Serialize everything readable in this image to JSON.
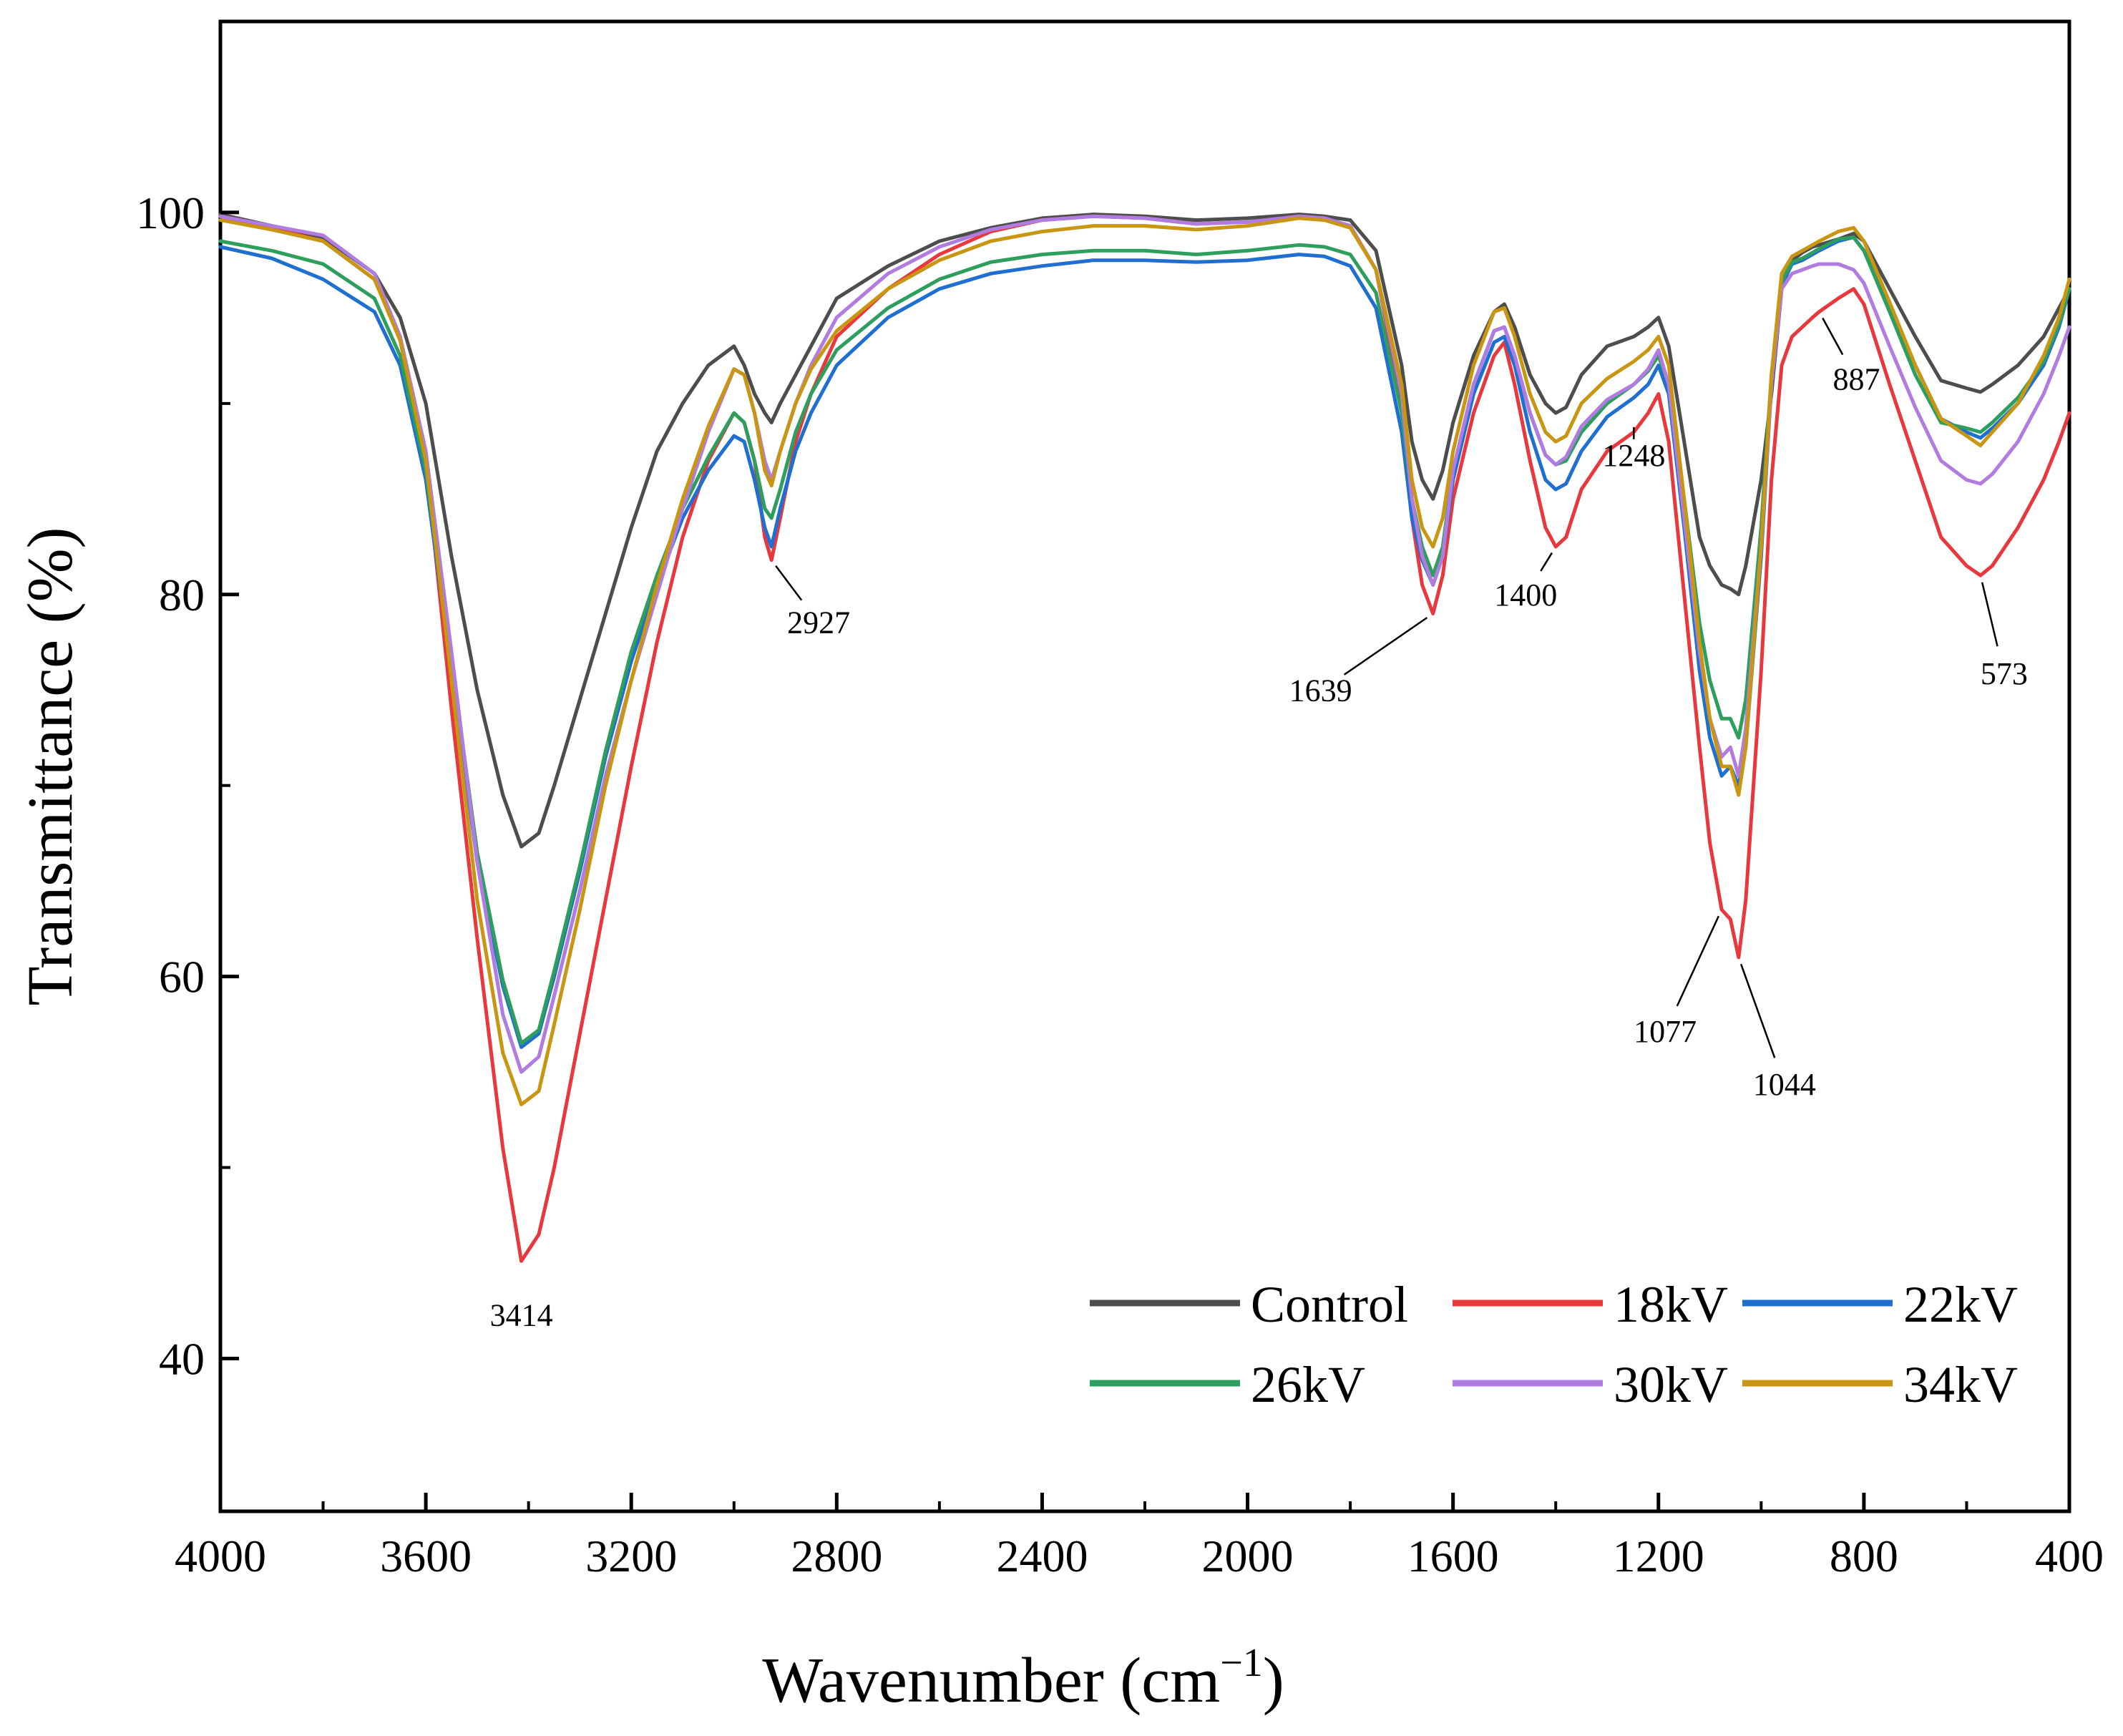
{
  "chart_data": {
    "type": "line",
    "title": "",
    "xlabel": "Wavenumber (cm",
    "xlabel_sup": "−1",
    "xlabel_end": ")",
    "ylabel": "Transmittance (%)",
    "xlim": [
      4000,
      400
    ],
    "ylim": [
      32,
      110
    ],
    "x_reversed": true,
    "xticks": [
      4000,
      3600,
      3200,
      2800,
      2400,
      2000,
      1600,
      1200,
      800,
      400
    ],
    "xtick_labels": [
      "4000",
      "3600",
      "3200",
      "2800",
      "2400",
      "2000",
      "1600",
      "1200",
      "800",
      "400"
    ],
    "yticks": [
      40,
      60,
      80,
      100
    ],
    "ytick_labels": [
      "40",
      "60",
      "80",
      "100"
    ],
    "grid": false,
    "legend_position": "bottom-right",
    "x": [
      4000,
      3900,
      3800,
      3700,
      3650,
      3600,
      3550,
      3500,
      3450,
      3414,
      3380,
      3350,
      3300,
      3250,
      3200,
      3150,
      3100,
      3050,
      3000,
      2980,
      2960,
      2940,
      2927,
      2910,
      2880,
      2850,
      2800,
      2700,
      2600,
      2500,
      2400,
      2300,
      2200,
      2100,
      2000,
      1900,
      1850,
      1800,
      1750,
      1700,
      1680,
      1660,
      1639,
      1620,
      1600,
      1560,
      1520,
      1500,
      1480,
      1450,
      1420,
      1400,
      1380,
      1350,
      1300,
      1248,
      1220,
      1200,
      1180,
      1150,
      1120,
      1100,
      1077,
      1060,
      1044,
      1030,
      1000,
      980,
      960,
      940,
      920,
      900,
      887,
      850,
      820,
      800,
      750,
      700,
      650,
      600,
      573,
      550,
      500,
      450,
      420,
      400
    ],
    "series": [
      {
        "name": "Control",
        "color": "#4d4d4d",
        "values": [
          99.9,
          99.3,
          98.7,
          96.8,
          94.5,
          90,
          82,
          75,
          69.5,
          66.8,
          67.5,
          70,
          74.5,
          79,
          83.5,
          87.5,
          90,
          92,
          93,
          92,
          90.5,
          89.5,
          89,
          90,
          91.5,
          93,
          95.5,
          97.2,
          98.5,
          99.2,
          99.7,
          99.9,
          99.8,
          99.6,
          99.7,
          99.9,
          99.8,
          99.6,
          98,
          92,
          88,
          86,
          85,
          86.5,
          89,
          92.5,
          94.8,
          95.2,
          94,
          91.5,
          90,
          89.5,
          89.8,
          91.5,
          93,
          93.5,
          94,
          94.5,
          93,
          88,
          83,
          81.5,
          80.5,
          80.3,
          80,
          81.5,
          86,
          90.5,
          96,
          97.5,
          97.9,
          98.2,
          98.3,
          98.6,
          98.9,
          98.5,
          96,
          93.5,
          91.2,
          90.8,
          90.6,
          91,
          92,
          93.5,
          95,
          96
        ]
      },
      {
        "name": "18kV",
        "color": "#e8383d",
        "values": [
          99.8,
          99.2,
          98.5,
          96.5,
          93.5,
          87,
          74,
          62,
          51,
          45.1,
          46.5,
          50,
          57,
          64,
          71,
          77.5,
          83,
          87,
          89.5,
          89,
          87,
          83,
          81.8,
          84,
          88,
          90.5,
          93.5,
          96,
          97.8,
          99,
          99.6,
          99.8,
          99.7,
          99.4,
          99.5,
          99.8,
          99.7,
          99.3,
          97,
          90,
          84,
          80.5,
          79,
          81,
          85,
          89.5,
          92.5,
          93.2,
          91,
          87,
          83.5,
          82.5,
          83,
          85.5,
          87.5,
          88.5,
          89.5,
          90.5,
          88,
          80,
          72,
          67,
          63.5,
          63,
          61,
          64,
          76,
          86,
          92,
          93.5,
          94,
          94.5,
          94.8,
          95.5,
          96,
          95.2,
          91,
          87,
          83,
          81.5,
          81,
          81.5,
          83.5,
          86,
          88,
          89.5
        ]
      },
      {
        "name": "22kV",
        "color": "#1f6fd0",
        "values": [
          98.2,
          97.6,
          96.5,
          94.8,
          92,
          86,
          76,
          66,
          59.5,
          56.3,
          57,
          60,
          65.5,
          71.5,
          76.5,
          80.5,
          84,
          86.5,
          88.3,
          88,
          86,
          83.5,
          82.5,
          84.5,
          87.5,
          89.5,
          92,
          94.5,
          96,
          96.8,
          97.2,
          97.5,
          97.5,
          97.4,
          97.5,
          97.8,
          97.7,
          97.2,
          95,
          88.5,
          84,
          81.8,
          80.5,
          82,
          86,
          90.5,
          93.2,
          93.5,
          92,
          88.5,
          86,
          85.5,
          85.8,
          87.5,
          89.3,
          90.3,
          91,
          92,
          90.5,
          83.5,
          76,
          72.5,
          70.5,
          71,
          70,
          72,
          82,
          91,
          96.2,
          97.3,
          97.5,
          97.8,
          98,
          98.5,
          98.7,
          98,
          95,
          92,
          89.2,
          88.5,
          88.2,
          88.7,
          90,
          92,
          94,
          96
        ]
      },
      {
        "name": "26kV",
        "color": "#2e9e5e",
        "values": [
          98.5,
          98,
          97.3,
          95.5,
          92.5,
          86.5,
          76.5,
          66.5,
          59.8,
          56.5,
          57.2,
          60.3,
          65.8,
          71.8,
          77,
          81,
          84.5,
          87.2,
          89.5,
          89,
          87,
          84.5,
          84,
          85.5,
          88.5,
          90.5,
          92.8,
          95,
          96.5,
          97.4,
          97.8,
          98,
          98,
          97.8,
          98,
          98.3,
          98.2,
          97.8,
          95.8,
          89.5,
          85,
          82.5,
          81,
          82.5,
          86.5,
          91,
          93.8,
          94,
          92.5,
          89.5,
          87.3,
          86.8,
          87,
          88.5,
          90,
          91,
          91.7,
          92.5,
          91,
          85,
          78.5,
          75.5,
          73.5,
          73.5,
          72.5,
          74.5,
          83.5,
          91.5,
          96.4,
          97.4,
          97.6,
          97.9,
          98.1,
          98.6,
          98.7,
          98,
          94.8,
          91.5,
          89,
          88.7,
          88.5,
          89,
          90.3,
          92.2,
          94.2,
          96
        ]
      },
      {
        "name": "30kV",
        "color": "#b07ce0",
        "values": [
          99.8,
          99.3,
          98.8,
          96.8,
          93.5,
          87.5,
          77,
          66,
          58,
          55,
          55.8,
          59,
          64.5,
          70.5,
          75.5,
          80,
          84.5,
          88.5,
          91.8,
          91.5,
          89.5,
          87,
          86,
          87.5,
          90,
          92,
          94.5,
          96.8,
          98.2,
          99.1,
          99.6,
          99.8,
          99.7,
          99.4,
          99.5,
          99.8,
          99.7,
          99.3,
          97,
          90.5,
          85,
          82,
          80.5,
          82,
          86.5,
          91,
          93.8,
          94,
          92.5,
          89.5,
          87.3,
          86.8,
          87.2,
          88.8,
          90.2,
          91,
          91.8,
          92.8,
          91,
          84,
          77,
          73.5,
          71.5,
          72,
          70.5,
          73,
          82.5,
          91,
          96,
          96.8,
          97,
          97.2,
          97.3,
          97.3,
          97,
          96.3,
          93,
          89.8,
          87,
          86,
          85.8,
          86.3,
          88,
          90.5,
          92.5,
          94
        ]
      },
      {
        "name": "34kV",
        "color": "#c89612",
        "values": [
          99.6,
          99.1,
          98.5,
          96.5,
          93.3,
          87,
          75.5,
          64,
          56,
          53.3,
          54,
          57.5,
          63.5,
          70,
          75.5,
          80.5,
          85,
          88.8,
          91.8,
          91.5,
          89.5,
          86.5,
          85.7,
          87.5,
          90,
          91.8,
          93.8,
          96,
          97.5,
          98.5,
          99,
          99.3,
          99.3,
          99.1,
          99.3,
          99.7,
          99.6,
          99.2,
          97,
          91,
          86,
          83.5,
          82.5,
          84,
          87.5,
          92,
          94.8,
          95,
          93.5,
          90.5,
          88.5,
          88,
          88.3,
          90,
          91.3,
          92.2,
          92.8,
          93.5,
          92,
          85,
          77.5,
          73.5,
          71,
          71,
          69.5,
          72,
          82.5,
          91.5,
          96.8,
          97.7,
          98,
          98.3,
          98.5,
          99,
          99.2,
          98.5,
          95.3,
          92,
          89.2,
          88.3,
          87.8,
          88.5,
          90,
          92.5,
          94.5,
          96.5
        ]
      }
    ],
    "annotations": [
      {
        "label": "3414",
        "x": 3414,
        "y": 45.1
      },
      {
        "label": "2927",
        "x": 2927,
        "y": 81.8
      },
      {
        "label": "1639",
        "x": 1639,
        "y": 79
      },
      {
        "label": "1400",
        "x": 1400,
        "y": 82.5
      },
      {
        "label": "1248",
        "x": 1248,
        "y": 88.5
      },
      {
        "label": "1077",
        "x": 1077,
        "y": 63.5
      },
      {
        "label": "1044",
        "x": 1044,
        "y": 61
      },
      {
        "label": "887",
        "x": 887,
        "y": 94.8
      },
      {
        "label": "573",
        "x": 573,
        "y": 81
      }
    ]
  }
}
